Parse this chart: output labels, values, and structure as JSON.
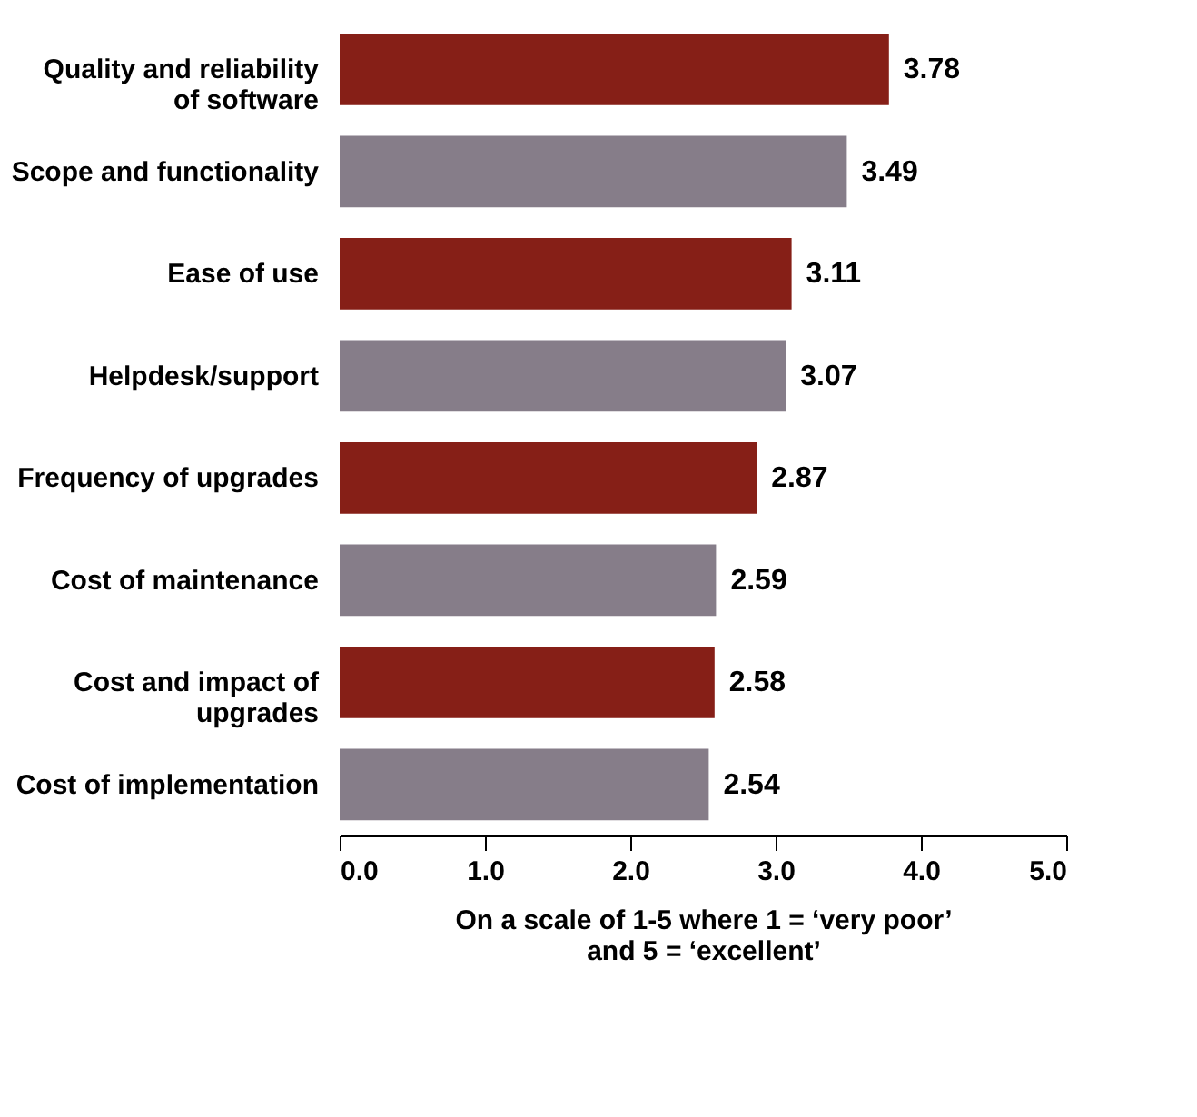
{
  "chart_data": {
    "type": "bar",
    "orientation": "horizontal",
    "categories": [
      "Quality and reliability of software",
      "Scope and functionality",
      "Ease of use",
      "Helpdesk/support",
      "Frequency of upgrades",
      "Cost of maintenance",
      "Cost and impact of upgrades",
      "Cost of implementation"
    ],
    "values": [
      3.78,
      3.49,
      3.11,
      3.07,
      2.87,
      2.59,
      2.58,
      2.54
    ],
    "colors": [
      "#861f17",
      "#867d89",
      "#861f17",
      "#867d89",
      "#861f17",
      "#867d89",
      "#861f17",
      "#867d89"
    ],
    "xlim": [
      0,
      5
    ],
    "xticks": [
      {
        "value": 0,
        "label": "0.0"
      },
      {
        "value": 1,
        "label": "1.0"
      },
      {
        "value": 2,
        "label": "2.0"
      },
      {
        "value": 3,
        "label": "3.0"
      },
      {
        "value": 4,
        "label": "4.0"
      },
      {
        "value": 5,
        "label": "5.0"
      }
    ],
    "xlabel": "On a scale of 1-5 where 1 = ‘very poor’ and 5 = ‘excellent’",
    "data_labels": true,
    "grid": false
  }
}
